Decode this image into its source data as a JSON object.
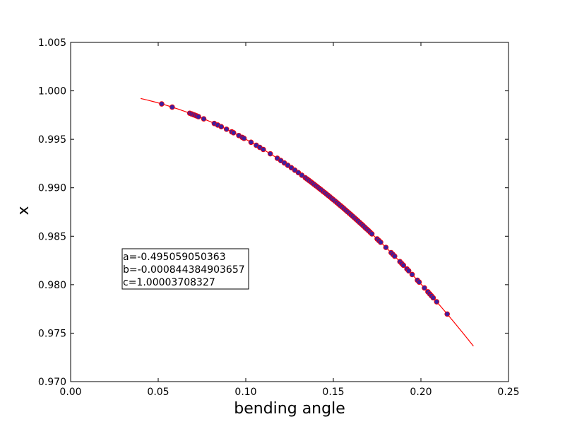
{
  "chart_data": {
    "type": "scatter",
    "title": "",
    "xlabel": "bending angle",
    "ylabel": "x",
    "xlim": [
      0.0,
      0.25
    ],
    "ylim": [
      0.97,
      1.005
    ],
    "xticks": [
      "0.00",
      "0.05",
      "0.10",
      "0.15",
      "0.20",
      "0.25"
    ],
    "yticks": [
      "0.970",
      "0.975",
      "0.980",
      "0.985",
      "0.990",
      "0.995",
      "1.000",
      "1.005"
    ],
    "grid": false,
    "annotation": {
      "lines": [
        "a=-0.495059050363",
        "b=-0.000844384903657",
        "c=1.00003708327"
      ]
    },
    "fit": {
      "type": "quadratic",
      "a": -0.495059050363,
      "b": -0.000844384903657,
      "c": 1.00003708327,
      "x_range": [
        0.04,
        0.23
      ],
      "color": "#ff0000"
    },
    "points": {
      "face_color": "#3d1fa0",
      "edge_color": "#ff0000",
      "x": [
        0.052,
        0.058,
        0.068,
        0.069,
        0.07,
        0.071,
        0.072,
        0.073,
        0.076,
        0.082,
        0.084,
        0.086,
        0.089,
        0.092,
        0.093,
        0.096,
        0.098,
        0.099,
        0.103,
        0.106,
        0.108,
        0.11,
        0.114,
        0.118,
        0.12,
        0.122,
        0.124,
        0.126,
        0.128,
        0.13,
        0.132,
        0.134,
        0.135,
        0.136,
        0.137,
        0.138,
        0.139,
        0.14,
        0.141,
        0.142,
        0.143,
        0.144,
        0.145,
        0.146,
        0.147,
        0.148,
        0.149,
        0.15,
        0.151,
        0.152,
        0.153,
        0.154,
        0.155,
        0.156,
        0.157,
        0.158,
        0.159,
        0.16,
        0.161,
        0.162,
        0.163,
        0.164,
        0.165,
        0.166,
        0.167,
        0.168,
        0.169,
        0.17,
        0.171,
        0.172,
        0.175,
        0.176,
        0.177,
        0.18,
        0.183,
        0.184,
        0.185,
        0.188,
        0.189,
        0.19,
        0.192,
        0.193,
        0.195,
        0.198,
        0.199,
        0.202,
        0.204,
        0.205,
        0.206,
        0.207,
        0.209,
        0.215
      ]
    }
  }
}
